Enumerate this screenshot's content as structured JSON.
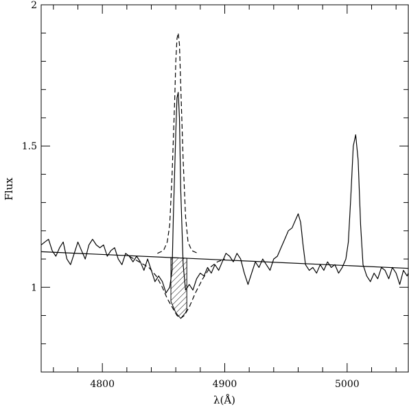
{
  "chart_data": {
    "type": "line",
    "title": "",
    "xlabel": "λ(Å)",
    "ylabel": "Flux",
    "xlim": [
      4750,
      5050
    ],
    "ylim": [
      0.7,
      2.0
    ],
    "x_ticks": [
      4800,
      4900,
      5000
    ],
    "y_ticks": [
      1,
      1.5,
      2
    ],
    "grid": false,
    "series": [
      {
        "style": "solid",
        "points": [
          [
            4750,
            1.15
          ],
          [
            4753,
            1.16
          ],
          [
            4756,
            1.17
          ],
          [
            4759,
            1.13
          ],
          [
            4762,
            1.11
          ],
          [
            4765,
            1.14
          ],
          [
            4768,
            1.16
          ],
          [
            4771,
            1.1
          ],
          [
            4774,
            1.08
          ],
          [
            4777,
            1.12
          ],
          [
            4780,
            1.16
          ],
          [
            4783,
            1.13
          ],
          [
            4786,
            1.1
          ],
          [
            4789,
            1.15
          ],
          [
            4792,
            1.17
          ],
          [
            4795,
            1.15
          ],
          [
            4798,
            1.14
          ],
          [
            4801,
            1.15
          ],
          [
            4804,
            1.11
          ],
          [
            4807,
            1.13
          ],
          [
            4810,
            1.14
          ],
          [
            4813,
            1.1
          ],
          [
            4816,
            1.08
          ],
          [
            4819,
            1.12
          ],
          [
            4822,
            1.11
          ],
          [
            4825,
            1.09
          ],
          [
            4828,
            1.11
          ],
          [
            4831,
            1.09
          ],
          [
            4834,
            1.06
          ],
          [
            4837,
            1.1
          ],
          [
            4840,
            1.06
          ],
          [
            4843,
            1.02
          ],
          [
            4846,
            1.04
          ],
          [
            4849,
            1.02
          ],
          [
            4852,
            0.98
          ],
          [
            4855,
            1.0
          ],
          [
            4857,
            1.06
          ],
          [
            4858,
            1.25
          ],
          [
            4860,
            1.55
          ],
          [
            4861,
            1.67
          ],
          [
            4862,
            1.69
          ],
          [
            4863,
            1.6
          ],
          [
            4864,
            1.35
          ],
          [
            4866,
            1.08
          ],
          [
            4868,
            0.99
          ],
          [
            4871,
            1.01
          ],
          [
            4874,
            0.99
          ],
          [
            4877,
            1.03
          ],
          [
            4880,
            1.05
          ],
          [
            4883,
            1.04
          ],
          [
            4886,
            1.07
          ],
          [
            4889,
            1.05
          ],
          [
            4892,
            1.08
          ],
          [
            4895,
            1.06
          ],
          [
            4898,
            1.09
          ],
          [
            4901,
            1.12
          ],
          [
            4904,
            1.11
          ],
          [
            4907,
            1.09
          ],
          [
            4910,
            1.12
          ],
          [
            4913,
            1.1
          ],
          [
            4916,
            1.05
          ],
          [
            4919,
            1.01
          ],
          [
            4922,
            1.05
          ],
          [
            4925,
            1.09
          ],
          [
            4928,
            1.07
          ],
          [
            4931,
            1.1
          ],
          [
            4934,
            1.08
          ],
          [
            4937,
            1.06
          ],
          [
            4940,
            1.1
          ],
          [
            4943,
            1.11
          ],
          [
            4946,
            1.14
          ],
          [
            4949,
            1.17
          ],
          [
            4952,
            1.2
          ],
          [
            4955,
            1.21
          ],
          [
            4958,
            1.24
          ],
          [
            4960,
            1.26
          ],
          [
            4962,
            1.23
          ],
          [
            4964,
            1.15
          ],
          [
            4966,
            1.08
          ],
          [
            4969,
            1.06
          ],
          [
            4972,
            1.07
          ],
          [
            4975,
            1.05
          ],
          [
            4978,
            1.08
          ],
          [
            4981,
            1.06
          ],
          [
            4984,
            1.09
          ],
          [
            4987,
            1.07
          ],
          [
            4990,
            1.08
          ],
          [
            4993,
            1.05
          ],
          [
            4996,
            1.07
          ],
          [
            4999,
            1.1
          ],
          [
            5001,
            1.16
          ],
          [
            5003,
            1.32
          ],
          [
            5005,
            1.5
          ],
          [
            5007,
            1.54
          ],
          [
            5009,
            1.45
          ],
          [
            5011,
            1.22
          ],
          [
            5013,
            1.08
          ],
          [
            5016,
            1.04
          ],
          [
            5019,
            1.02
          ],
          [
            5022,
            1.05
          ],
          [
            5025,
            1.03
          ],
          [
            5028,
            1.07
          ],
          [
            5031,
            1.06
          ],
          [
            5034,
            1.03
          ],
          [
            5037,
            1.07
          ],
          [
            5040,
            1.05
          ],
          [
            5043,
            1.01
          ],
          [
            5046,
            1.06
          ],
          [
            5049,
            1.04
          ],
          [
            5050,
            1.05
          ]
        ]
      },
      {
        "style": "dashed",
        "points": [
          [
            4822,
            1.11
          ],
          [
            4830,
            1.09
          ],
          [
            4838,
            1.07
          ],
          [
            4844,
            1.04
          ],
          [
            4849,
            1.0
          ],
          [
            4853,
            0.96
          ],
          [
            4857,
            0.93
          ],
          [
            4861,
            0.9
          ],
          [
            4864,
            0.89
          ],
          [
            4867,
            0.9
          ],
          [
            4871,
            0.93
          ],
          [
            4876,
            0.98
          ],
          [
            4882,
            1.03
          ],
          [
            4888,
            1.07
          ],
          [
            4894,
            1.09
          ],
          [
            4900,
            1.1
          ]
        ]
      },
      {
        "style": "dashed",
        "points": [
          [
            4845,
            1.12
          ],
          [
            4850,
            1.13
          ],
          [
            4853,
            1.16
          ],
          [
            4855,
            1.22
          ],
          [
            4857,
            1.4
          ],
          [
            4859,
            1.65
          ],
          [
            4860,
            1.8
          ],
          [
            4861,
            1.88
          ],
          [
            4862,
            1.9
          ],
          [
            4863,
            1.86
          ],
          [
            4864,
            1.72
          ],
          [
            4866,
            1.45
          ],
          [
            4868,
            1.25
          ],
          [
            4870,
            1.16
          ],
          [
            4873,
            1.13
          ],
          [
            4878,
            1.12
          ]
        ]
      },
      {
        "style": "solid",
        "points": [
          [
            4750,
            1.126
          ],
          [
            5050,
            1.067
          ]
        ]
      }
    ],
    "hatched_region": {
      "x_range": [
        4856,
        4869
      ],
      "lower": [
        [
          4856,
          0.95
        ],
        [
          4858,
          0.93
        ],
        [
          4860,
          0.91
        ],
        [
          4862,
          0.9
        ],
        [
          4864,
          0.89
        ],
        [
          4866,
          0.9
        ],
        [
          4868,
          0.91
        ],
        [
          4869,
          0.92
        ]
      ]
    }
  }
}
